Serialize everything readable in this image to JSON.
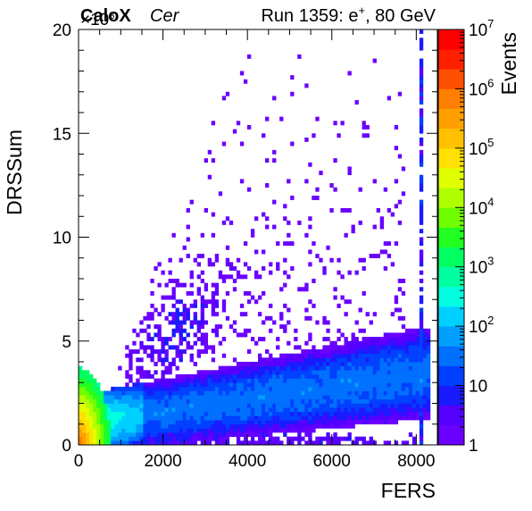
{
  "header": {
    "brand": "CaloX",
    "channel": "Cer",
    "run_info_prefix": "Run 1359: e",
    "run_info_sup": "+",
    "run_info_suffix": ", 80 GeV"
  },
  "chart_data": {
    "type": "heatmap",
    "xlabel": "FERS",
    "ylabel": "DRSSum",
    "zlabel": "Events",
    "xlim": [
      0,
      8500
    ],
    "ylim": [
      0,
      20000
    ],
    "zlim": [
      1,
      10000000
    ],
    "z_scale": "log",
    "y_multiplier_label": "×10",
    "y_multiplier_exp": "3",
    "x_ticks": [
      0,
      2000,
      4000,
      6000,
      8000
    ],
    "x_tick_labels": [
      "0",
      "2000",
      "4000",
      "6000",
      "8000"
    ],
    "y_ticks": [
      0,
      5000,
      10000,
      15000,
      20000
    ],
    "y_tick_labels": [
      "0",
      "5",
      "10",
      "15",
      "20"
    ],
    "z_ticks": [
      1,
      10,
      100,
      1000,
      10000,
      100000,
      1000000,
      10000000
    ],
    "z_tick_labels": [
      {
        "base": "1",
        "exp": ""
      },
      {
        "base": "10",
        "exp": ""
      },
      {
        "base": "10",
        "exp": "2"
      },
      {
        "base": "10",
        "exp": "3"
      },
      {
        "base": "10",
        "exp": "4"
      },
      {
        "base": "10",
        "exp": "5"
      },
      {
        "base": "10",
        "exp": "6"
      },
      {
        "base": "10",
        "exp": "7"
      }
    ],
    "palette": [
      "#6a00ff",
      "#5500ff",
      "#1a1aff",
      "#0040ff",
      "#0070ff",
      "#00a0ff",
      "#00d0ff",
      "#00ffe0",
      "#00ffa0",
      "#00ff60",
      "#20ff20",
      "#70ff00",
      "#b0ff00",
      "#e0ff00",
      "#ffe000",
      "#ffc000",
      "#ffa000",
      "#ff8000",
      "#ff5000",
      "#ff2000",
      "#ff0000"
    ],
    "bins": {
      "nx": 100,
      "ny": 100
    },
    "features": [
      {
        "region": "low-energy core",
        "x": [
          0,
          400
        ],
        "y": [
          0,
          2500
        ],
        "peak_count": 1000000
      },
      {
        "region": "diagonal main band",
        "x": [
          400,
          8300
        ],
        "y": [
          1000,
          4000
        ],
        "typical_count": 30
      },
      {
        "region": "pedestal row at low DRSSum",
        "x": [
          1500,
          8000
        ],
        "y": [
          0,
          600
        ],
        "typical_count": 3
      },
      {
        "region": "FERS saturation column",
        "x": [
          8050,
          8200
        ],
        "y": [
          0,
          20000
        ],
        "typical_count": 5
      },
      {
        "region": "sparse upper scatter",
        "x": [
          1000,
          7500
        ],
        "y": [
          4000,
          18500
        ],
        "typical_count": 1
      }
    ]
  }
}
